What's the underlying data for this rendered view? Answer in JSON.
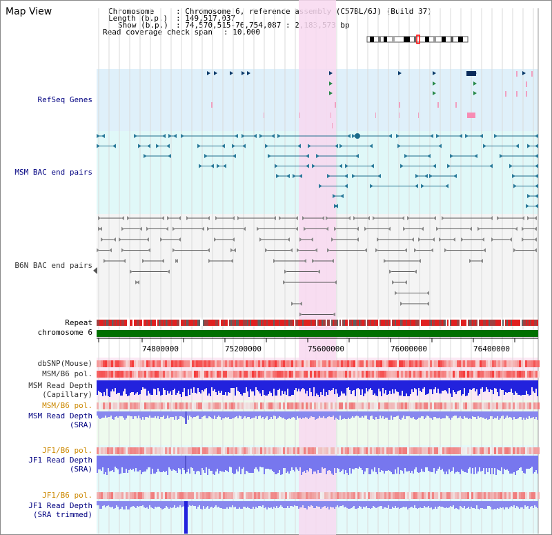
{
  "title": "Map View",
  "info": {
    "chromosome_key": "Chromosome",
    "chromosome_val": ": Chromosome 6, reference assembly (C57BL/6J) (Build 37)",
    "length_key": "Length (b.p.)",
    "length_val": ": 149,517,037",
    "show_key": "Show (b.p.)",
    "show_val": ": 74,570,515-76,754,087 : 2,183,573 bp",
    "coverage_key": "Read coverage check span",
    "coverage_val": ": 10,000"
  },
  "tracks": {
    "refseq": "RefSeq Genes",
    "msm_bac": "MSM BAC end pairs",
    "b6n_bac": "B6N BAC end pairs",
    "repeat": "Repeat",
    "chromosome": "chromosome 6",
    "dbsnp": "dbSNP(Mouse)",
    "msm_b6_pol_1": "MSM/B6 pol.",
    "msm_depth_cap_1": "MSM Read Depth",
    "msm_depth_cap_2": "(Capillary)",
    "msm_b6_pol_2": "MSM/B6 pol.",
    "msm_depth_sra_1": "MSM Read Depth",
    "msm_depth_sra_2": "(SRA)",
    "jf1_b6_pol_1": "JF1/B6 pol.",
    "jf1_depth_sra_1": "JF1 Read Depth",
    "jf1_depth_sra_2": "(SRA)",
    "jf1_b6_pol_2": "JF1/B6 pol.",
    "jf1_depth_trim_1": "JF1 Read Depth",
    "jf1_depth_trim_2": "(SRA trimmed)"
  },
  "axis": {
    "ticks": [
      "74800000",
      "75200000",
      "75600000",
      "76000000",
      "76400000"
    ]
  },
  "colors": {
    "label_blue": "#000080",
    "label_orange": "#cc8800",
    "highlight": "#f8d8f0",
    "refseq_bg": "#dff0fa",
    "bac_bg": "#e0f8f8",
    "chromosome_bar": "#007000",
    "depth_blue": "#2222dd"
  }
}
